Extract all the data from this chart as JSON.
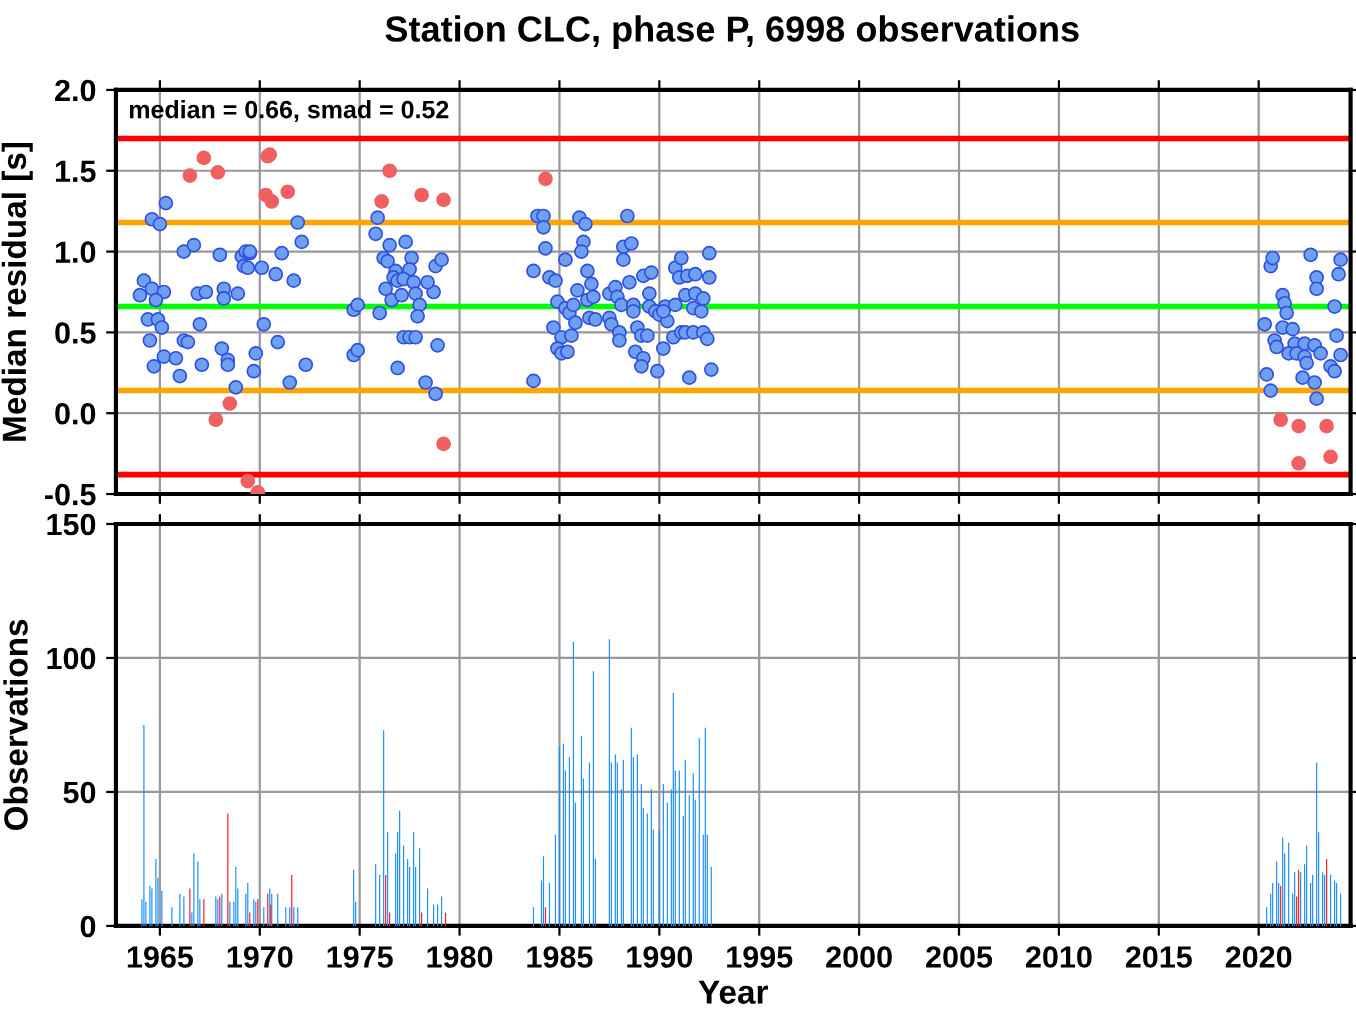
{
  "chart_data": [
    {
      "type": "scatter",
      "title": "Station CLC, phase P, 6998 observations",
      "ylabel": "Median residual [s]",
      "marker": "circle",
      "xlim": [
        1962.8,
        2024.6
      ],
      "xticks": [
        1965,
        1970,
        1975,
        1980,
        1985,
        1990,
        1995,
        2000,
        2005,
        2010,
        2015,
        2020
      ],
      "ylim": [
        -0.5,
        2.0
      ],
      "yticks": [
        -0.5,
        {
          "value": 0,
          "label": "0.0"
        },
        0.5,
        {
          "value": 1,
          "label": "1.0"
        },
        1.5,
        {
          "value": 2,
          "label": "2.0"
        }
      ],
      "grid": true,
      "tick_labels": "y",
      "annotations": [
        "median = 0.66, smad = 0.52"
      ],
      "ref_lines": [
        {
          "axis": "y",
          "value": 1.7,
          "color": "#ff0000"
        },
        {
          "axis": "y",
          "value": 1.18,
          "color": "#ffa500"
        },
        {
          "axis": "y",
          "value": 0.66,
          "color": "#00ff00"
        },
        {
          "axis": "y",
          "value": 0.14,
          "color": "#ffa500"
        },
        {
          "axis": "y",
          "value": -0.38,
          "color": "#ff0000"
        }
      ],
      "series": [
        {
          "color": "#6fa0f0",
          "x": [
            1965.3,
            1964.6,
            1965.0,
            1964.2,
            1964.0,
            1964.6,
            1965.2,
            1964.8,
            1964.4,
            1964.9,
            1965.1,
            1964.5,
            1965.2,
            1964.7,
            1965.8,
            1966.0,
            1966.2,
            1966.4,
            1966.2,
            1966.7,
            1967.0,
            1967.1,
            1966.9,
            1967.3,
            1968.0,
            1968.1,
            1968.2,
            1968.2,
            1968.4,
            1968.4,
            1968.8,
            1968.9,
            1969.1,
            1969.2,
            1969.3,
            1969.5,
            1969.4,
            1969.5,
            1969.8,
            1969.7,
            1970.1,
            1970.2,
            1970.8,
            1971.1,
            1970.9,
            1971.7,
            1971.5,
            1971.9,
            1972.1,
            1972.3,
            1974.7,
            1974.9,
            1974.7,
            1974.9,
            1975.9,
            1975.8,
            1976.5,
            1977.3,
            1976.2,
            1976.4,
            1976.8,
            1976.7,
            1977.6,
            1977.5,
            1976.9,
            1977.2,
            1977.7,
            1976.3,
            1976.6,
            1977.1,
            1977.8,
            1978.7,
            1978.4,
            1978.8,
            1979.1,
            1978.0,
            1977.9,
            1976.0,
            1977.2,
            1977.5,
            1977.8,
            1978.9,
            1976.9,
            1978.3,
            1978.8,
            1983.7,
            1983.9,
            1983.7,
            1984.2,
            1984.2,
            1984.3,
            1985.3,
            1986.0,
            1986.3,
            1986.2,
            1986.1,
            1986.4,
            1984.5,
            1984.8,
            1984.9,
            1985.3,
            1985.5,
            1985.7,
            1985.9,
            1986.4,
            1986.7,
            1986.6,
            1984.7,
            1985.1,
            1985.6,
            1984.9,
            1985.1,
            1985.4,
            1985.8,
            1986.5,
            1986.8,
            1987.5,
            1987.8,
            1987.9,
            1988.2,
            1988.6,
            1988.2,
            1988.4,
            1988.5,
            1988.1,
            1988.7,
            1987.5,
            1987.6,
            1988.0,
            1988.0,
            1988.7,
            1988.9,
            1989.1,
            1989.4,
            1988.8,
            1989.2,
            1989.1,
            1989.2,
            1989.6,
            1989.5,
            1989.5,
            1989.8,
            1990.0,
            1990.3,
            1990.4,
            1990.2,
            1989.9,
            1990.2,
            1990.7,
            1990.8,
            1991.1,
            1991.0,
            1991.4,
            1991.8,
            1992.5,
            1992.5,
            1990.8,
            1991.3,
            1991.7,
            1991.8,
            1992.2,
            1992.1,
            1991.1,
            1991.3,
            1991.7,
            1992.2,
            1992.4,
            1991.5,
            1992.6,
            2020.6,
            2020.7,
            2022.6,
            2024.1,
            2024.0,
            2022.9,
            2022.9,
            2021.2,
            2021.3,
            2021.4,
            2023.8,
            2020.3,
            2021.2,
            2021.7,
            2020.8,
            2020.9,
            2021.8,
            2022.3,
            2022.8,
            2021.5,
            2021.9,
            2022.3,
            2023.1,
            2023.9,
            2024.1,
            2020.4,
            2022.2,
            2022.8,
            2023.6,
            2023.8,
            2020.6,
            2022.9,
            2022.4
          ],
          "values": [
            1.3,
            1.2,
            1.17,
            0.82,
            0.73,
            0.77,
            0.75,
            0.7,
            0.58,
            0.58,
            0.53,
            0.45,
            0.35,
            0.29,
            0.34,
            0.23,
            0.45,
            0.44,
            1.0,
            1.04,
            0.55,
            0.3,
            0.74,
            0.75,
            0.98,
            0.4,
            0.77,
            0.71,
            0.33,
            0.3,
            0.16,
            0.74,
            0.97,
            0.91,
            1.0,
            0.99,
            0.9,
            1.0,
            0.37,
            0.26,
            0.9,
            0.55,
            0.86,
            0.99,
            0.44,
            0.82,
            0.19,
            1.18,
            1.06,
            0.3,
            0.64,
            0.67,
            0.36,
            0.39,
            1.21,
            1.11,
            1.04,
            1.06,
            0.96,
            0.94,
            0.88,
            0.84,
            0.96,
            0.89,
            0.82,
            0.83,
            0.81,
            0.77,
            0.7,
            0.73,
            0.74,
            0.75,
            0.81,
            0.91,
            0.95,
            0.67,
            0.6,
            0.62,
            0.47,
            0.47,
            0.47,
            0.42,
            0.28,
            0.19,
            0.12,
            0.88,
            1.22,
            0.2,
            1.22,
            1.15,
            1.02,
            0.95,
            1.21,
            1.17,
            1.06,
            1.0,
            0.88,
            0.84,
            0.82,
            0.69,
            0.65,
            0.62,
            0.67,
            0.76,
            0.7,
            0.72,
            0.8,
            0.53,
            0.47,
            0.48,
            0.4,
            0.37,
            0.38,
            0.56,
            0.59,
            0.58,
            0.74,
            0.78,
            0.72,
            1.03,
            1.05,
            0.95,
            1.22,
            0.81,
            0.67,
            0.67,
            0.59,
            0.55,
            0.5,
            0.45,
            0.63,
            0.53,
            0.48,
            0.48,
            0.38,
            0.34,
            0.29,
            0.85,
            0.87,
            0.74,
            0.66,
            0.63,
            0.61,
            0.66,
            0.57,
            0.63,
            0.26,
            0.4,
            0.47,
            0.9,
            0.96,
            0.84,
            0.85,
            0.86,
            0.84,
            0.99,
            0.67,
            0.73,
            0.65,
            0.74,
            0.71,
            0.63,
            0.5,
            0.5,
            0.5,
            0.5,
            0.46,
            0.22,
            0.27,
            0.91,
            0.96,
            0.98,
            0.95,
            0.86,
            0.84,
            0.77,
            0.73,
            0.68,
            0.62,
            0.66,
            0.55,
            0.53,
            0.52,
            0.45,
            0.41,
            0.43,
            0.43,
            0.42,
            0.37,
            0.37,
            0.35,
            0.37,
            0.48,
            0.36,
            0.24,
            0.22,
            0.19,
            0.29,
            0.26,
            0.14,
            0.09,
            0.31
          ]
        },
        {
          "color": "#f06060",
          "x": [
            1966.5,
            1967.2,
            1967.9,
            1970.4,
            1970.5,
            1970.3,
            1970.6,
            1971.4,
            1968.5,
            1967.8,
            1969.4,
            1969.9,
            1976.5,
            1976.1,
            1978.1,
            1979.2,
            1979.2,
            1984.3,
            2021.1,
            2022.0,
            2023.4,
            2022.0,
            2023.6
          ],
          "values": [
            1.47,
            1.58,
            1.49,
            1.59,
            1.6,
            1.35,
            1.31,
            1.37,
            0.06,
            -0.04,
            -0.42,
            -0.49,
            1.5,
            1.31,
            1.35,
            1.32,
            -0.19,
            1.45,
            -0.04,
            -0.08,
            -0.08,
            -0.31,
            -0.27
          ]
        }
      ]
    },
    {
      "type": "bar",
      "xlabel": "Year",
      "ylabel": "Observations",
      "xlim": [
        1962.8,
        2024.6
      ],
      "xticks": [
        1965,
        1970,
        1975,
        1980,
        1985,
        1990,
        1995,
        2000,
        2005,
        2010,
        2015,
        2020
      ],
      "ylim": [
        0,
        150
      ],
      "yticks": [
        0,
        50,
        100,
        150
      ],
      "grid": true,
      "series": [
        {
          "color": "#1e90ff",
          "x": [
            1964.1,
            1964.2,
            1964.3,
            1964.5,
            1964.6,
            1964.8,
            1964.9,
            1965.1,
            1965.6,
            1966.0,
            1966.2,
            1966.6,
            1966.7,
            1966.9,
            1967.0,
            1967.8,
            1967.9,
            1968.1,
            1968.5,
            1968.7,
            1968.8,
            1968.9,
            1969.3,
            1969.4,
            1969.7,
            1969.8,
            1970.2,
            1970.5,
            1970.6,
            1970.9,
            1971.3,
            1971.5,
            1971.7,
            1971.9,
            1974.7,
            1974.8,
            1975.8,
            1976.0,
            1976.2,
            1976.4,
            1976.8,
            1976.9,
            1977.0,
            1977.2,
            1977.4,
            1977.5,
            1977.7,
            1977.8,
            1978.0,
            1978.4,
            1978.7,
            1978.9,
            1979.1,
            1983.7,
            1984.1,
            1984.2,
            1984.5,
            1984.8,
            1985.0,
            1985.2,
            1985.3,
            1985.5,
            1985.7,
            1985.8,
            1986.1,
            1986.2,
            1986.5,
            1986.7,
            1986.8,
            1987.5,
            1987.6,
            1987.8,
            1987.9,
            1988.1,
            1988.2,
            1988.6,
            1988.7,
            1988.9,
            1989.1,
            1989.2,
            1989.4,
            1989.6,
            1989.7,
            1990.0,
            1990.2,
            1990.4,
            1990.6,
            1990.7,
            1990.8,
            1991.0,
            1991.2,
            1991.3,
            1991.5,
            1991.7,
            1991.8,
            1992.0,
            1992.2,
            1992.3,
            1992.4,
            1992.6,
            2020.4,
            2020.6,
            2020.7,
            2020.9,
            2021.0,
            2021.2,
            2021.3,
            2021.5,
            2021.7,
            2021.8,
            2022.1,
            2022.3,
            2022.4,
            2022.6,
            2022.7,
            2022.9,
            2023.0,
            2023.2,
            2023.3,
            2023.6,
            2023.8,
            2023.9,
            2024.1
          ],
          "values": [
            10,
            75,
            9,
            15,
            14,
            25,
            18,
            13,
            7,
            12,
            11,
            5,
            27,
            24,
            10,
            11,
            10,
            12,
            9,
            9,
            22,
            14,
            12,
            16,
            10,
            9,
            7,
            14,
            12,
            12,
            7,
            7,
            7,
            7,
            21,
            9,
            23,
            19,
            73,
            35,
            27,
            35,
            43,
            30,
            25,
            22,
            35,
            22,
            29,
            14,
            8,
            8,
            11,
            7,
            17,
            26,
            16,
            34,
            67,
            68,
            58,
            63,
            106,
            46,
            71,
            55,
            61,
            95,
            25,
            107,
            61,
            64,
            61,
            51,
            62,
            74,
            63,
            64,
            53,
            44,
            42,
            51,
            36,
            36,
            53,
            46,
            51,
            87,
            58,
            58,
            41,
            62,
            49,
            57,
            47,
            70,
            34,
            74,
            34,
            22,
            7,
            12,
            16,
            24,
            16,
            33,
            27,
            31,
            12,
            20,
            20,
            23,
            30,
            16,
            19,
            61,
            35,
            20,
            19,
            19,
            17,
            16,
            12
          ]
        },
        {
          "color": "#ff2020",
          "x": [
            1966.5,
            1967.2,
            1968.0,
            1968.4,
            1969.5,
            1969.9,
            1970.4,
            1970.55,
            1971.6,
            1976.3,
            1976.5,
            1978.1,
            1979.3,
            1984.3,
            2021.1,
            2021.9,
            2022.0,
            2023.4
          ],
          "values": [
            14,
            10,
            11,
            42,
            5,
            10,
            12,
            8,
            19,
            19,
            5,
            5,
            5,
            7,
            15,
            11,
            21,
            25
          ]
        }
      ]
    }
  ]
}
